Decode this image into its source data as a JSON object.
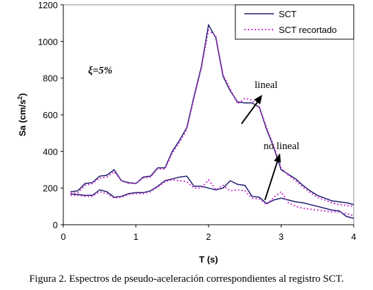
{
  "chart_data": {
    "type": "line",
    "title": "",
    "xlabel": "T (s)",
    "ylabel_main": "Sa (cm/s",
    "ylabel_sup": "2",
    "ylabel_close": ")",
    "xlim": [
      0,
      4
    ],
    "ylim": [
      0,
      1200
    ],
    "xticks": [
      "0",
      "1",
      "2",
      "3",
      "4"
    ],
    "yticks": [
      "0",
      "200",
      "400",
      "600",
      "800",
      "1000",
      "1200"
    ],
    "grid": false,
    "legend_position": "top-right",
    "series": [
      {
        "name": "SCT",
        "color": "#1a1a6e",
        "style": "solid",
        "group": "lineal",
        "x": [
          0.1,
          0.2,
          0.3,
          0.4,
          0.5,
          0.6,
          0.7,
          0.8,
          0.9,
          1.0,
          1.1,
          1.2,
          1.3,
          1.4,
          1.5,
          1.6,
          1.7,
          1.8,
          1.9,
          2.0,
          2.1,
          2.2,
          2.3,
          2.4,
          2.5,
          2.6,
          2.7,
          2.8,
          2.9,
          3.0,
          3.1,
          3.2,
          3.3,
          3.4,
          3.5,
          3.6,
          3.7,
          3.8,
          3.9,
          4.0
        ],
        "values": [
          180,
          185,
          225,
          230,
          265,
          270,
          300,
          240,
          230,
          225,
          260,
          265,
          310,
          310,
          400,
          460,
          530,
          700,
          860,
          1090,
          1020,
          810,
          730,
          670,
          665,
          665,
          640,
          520,
          420,
          300,
          275,
          250,
          215,
          185,
          160,
          145,
          130,
          125,
          120,
          110
        ]
      },
      {
        "name": "SCT recortado",
        "color": "#cc33cc",
        "style": "dotted",
        "group": "lineal",
        "x": [
          0.1,
          0.2,
          0.3,
          0.4,
          0.5,
          0.6,
          0.7,
          0.8,
          0.9,
          1.0,
          1.1,
          1.2,
          1.3,
          1.4,
          1.5,
          1.6,
          1.7,
          1.8,
          1.9,
          2.0,
          2.1,
          2.2,
          2.3,
          2.4,
          2.5,
          2.6,
          2.7,
          2.8,
          2.9,
          3.0,
          3.1,
          3.2,
          3.3,
          3.4,
          3.5,
          3.6,
          3.7,
          3.8,
          3.9,
          4.0
        ],
        "values": [
          175,
          175,
          215,
          225,
          255,
          260,
          290,
          240,
          225,
          225,
          255,
          260,
          305,
          305,
          390,
          450,
          520,
          690,
          850,
          1060,
          1030,
          820,
          740,
          660,
          690,
          680,
          640,
          530,
          430,
          310,
          270,
          240,
          205,
          175,
          150,
          135,
          120,
          110,
          105,
          100
        ]
      },
      {
        "name": "SCT",
        "color": "#1a1a6e",
        "style": "solid",
        "group": "no lineal",
        "x": [
          0.1,
          0.2,
          0.3,
          0.4,
          0.5,
          0.6,
          0.7,
          0.8,
          0.9,
          1.0,
          1.1,
          1.2,
          1.3,
          1.4,
          1.5,
          1.6,
          1.7,
          1.8,
          1.9,
          2.0,
          2.1,
          2.2,
          2.3,
          2.4,
          2.5,
          2.6,
          2.7,
          2.8,
          2.9,
          3.0,
          3.1,
          3.2,
          3.3,
          3.4,
          3.5,
          3.6,
          3.7,
          3.8,
          3.9,
          4.0
        ],
        "values": [
          168,
          165,
          160,
          160,
          190,
          180,
          150,
          155,
          170,
          175,
          175,
          185,
          210,
          240,
          250,
          260,
          265,
          210,
          210,
          200,
          190,
          200,
          240,
          220,
          215,
          155,
          150,
          115,
          135,
          145,
          135,
          125,
          120,
          110,
          100,
          90,
          80,
          75,
          45,
          35
        ]
      },
      {
        "name": "SCT recortado",
        "color": "#cc33cc",
        "style": "dotted",
        "group": "no lineal",
        "x": [
          0.1,
          0.2,
          0.3,
          0.4,
          0.5,
          0.6,
          0.7,
          0.8,
          0.9,
          1.0,
          1.1,
          1.2,
          1.3,
          1.4,
          1.5,
          1.6,
          1.7,
          1.8,
          1.9,
          2.0,
          2.1,
          2.2,
          2.3,
          2.4,
          2.5,
          2.6,
          2.7,
          2.8,
          2.9,
          3.0,
          3.1,
          3.2,
          3.3,
          3.4,
          3.5,
          3.6,
          3.7,
          3.8,
          3.9,
          4.0
        ],
        "values": [
          160,
          160,
          155,
          155,
          180,
          170,
          145,
          150,
          165,
          170,
          170,
          180,
          205,
          235,
          245,
          240,
          235,
          200,
          200,
          245,
          190,
          215,
          185,
          190,
          185,
          145,
          140,
          110,
          150,
          180,
          120,
          100,
          90,
          85,
          80,
          75,
          70,
          70,
          60,
          50
        ]
      }
    ],
    "legend": [
      {
        "label": "SCT",
        "color": "#1a1a6e",
        "style": "solid"
      },
      {
        "label": "SCT recortado",
        "color": "#cc33cc",
        "style": "dotted"
      }
    ],
    "annotations": {
      "damping": "ξ=5%",
      "lineal": "lineal",
      "no_lineal": "no lineal"
    }
  },
  "caption": "Figura 2. Espectros de pseudo-aceleración correspondientes al registro SCT."
}
